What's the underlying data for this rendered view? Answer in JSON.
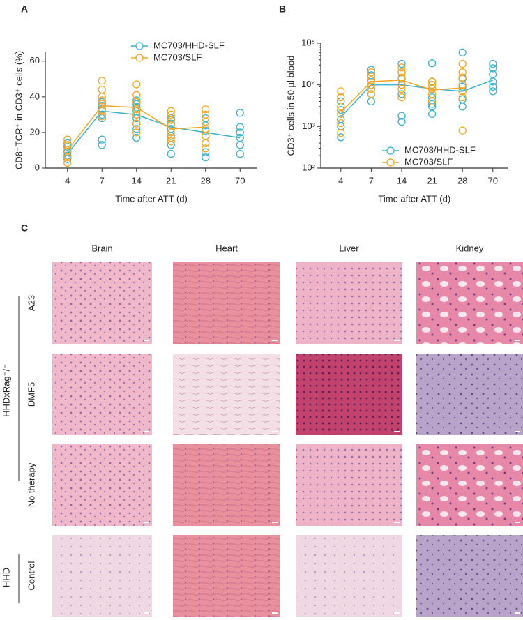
{
  "chart_data": [
    {
      "type": "line",
      "panel": "A",
      "y_label": "CD8⁺TCR⁺ in CD3⁺ cells (%)",
      "x_label": "Time after ATT (d)",
      "categories": [
        "4",
        "7",
        "14",
        "21",
        "28",
        "70"
      ],
      "ylim": [
        0,
        65
      ],
      "yticks": [
        0,
        20,
        40,
        60
      ],
      "log": false,
      "legend": "top-right",
      "series": [
        {
          "name": "MC703/HHD-SLF",
          "color": "#3bb3cc",
          "values": [
            8,
            32,
            30,
            23,
            20,
            17
          ],
          "points": [
            [
              5,
              7,
              9,
              12,
              14
            ],
            [
              13,
              16,
              28,
              30,
              33,
              35,
              37
            ],
            [
              17,
              22,
              25,
              28,
              30,
              32,
              34,
              36,
              38
            ],
            [
              8,
              13,
              18,
              22,
              25,
              27,
              28
            ],
            [
              6,
              9,
              14,
              18,
              21,
              24,
              28
            ],
            [
              8,
              13,
              17,
              20,
              23,
              31
            ]
          ]
        },
        {
          "name": "MC703/SLF",
          "color": "#f5a623",
          "values": [
            10,
            35,
            34,
            22,
            23,
            null
          ],
          "points": [
            [
              3,
              6,
              10,
              13,
              16
            ],
            [
              29,
              32,
              36,
              38,
              40,
              44,
              49
            ],
            [
              20,
              25,
              30,
              33,
              37,
              41,
              47
            ],
            [
              15,
              17,
              20,
              24,
              27,
              30,
              32
            ],
            [
              11,
              14,
              18,
              22,
              26,
              30,
              33
            ],
            []
          ]
        }
      ]
    },
    {
      "type": "line",
      "panel": "B",
      "y_label": "CD3⁺ cells in 50 µl blood",
      "x_label": "Time after ATT (d)",
      "categories": [
        "4",
        "7",
        "14",
        "21",
        "28",
        "70"
      ],
      "ylim": [
        100,
        100000
      ],
      "log": true,
      "legend": "bottom-right",
      "yticks": [
        {
          "value": 100,
          "label": "10²"
        },
        {
          "value": 1000,
          "label": "10³"
        },
        {
          "value": 10000,
          "label": "10⁴"
        },
        {
          "value": 100000,
          "label": "10⁵"
        }
      ],
      "series": [
        {
          "name": "MC703/HHD-SLF",
          "color": "#3bb3cc",
          "values": [
            1700,
            10000,
            10000,
            8000,
            7000,
            13000
          ],
          "points": [
            [
              550,
              1000,
              1500,
              2500,
              4000
            ],
            [
              4000,
              6000,
              8000,
              10000,
              13000,
              17000,
              23000
            ],
            [
              1300,
              1800,
              6000,
              10000,
              14000,
              20000,
              32000
            ],
            [
              2000,
              3000,
              3500,
              5000,
              8000,
              10000,
              12000,
              33000
            ],
            [
              3000,
              4500,
              7000,
              9000,
              14000,
              60000
            ],
            [
              7000,
              9000,
              12000,
              18000,
              25000,
              32000
            ]
          ]
        },
        {
          "name": "MC703/SLF",
          "color": "#f5a623",
          "values": [
            2200,
            12000,
            13000,
            7500,
            8500,
            null
          ],
          "points": [
            [
              700,
              1200,
              2000,
              3000,
              5000,
              7000
            ],
            [
              6000,
              8000,
              10000,
              13000,
              16000,
              20000
            ],
            [
              5000,
              8000,
              10000,
              15000,
              20000,
              26000
            ],
            [
              4000,
              6000,
              8000,
              10000,
              12000
            ],
            [
              800,
              5000,
              7000,
              10000,
              15000,
              20000,
              32000
            ],
            []
          ]
        }
      ]
    }
  ],
  "panel_c": {
    "label": "C",
    "columns": [
      "Brain",
      "Heart",
      "Liver",
      "Kidney"
    ],
    "rows": [
      "A23",
      "DMF5",
      "No therapy",
      "Control"
    ],
    "groups": [
      "HHDxRag⁻/⁻",
      "HHD"
    ]
  }
}
